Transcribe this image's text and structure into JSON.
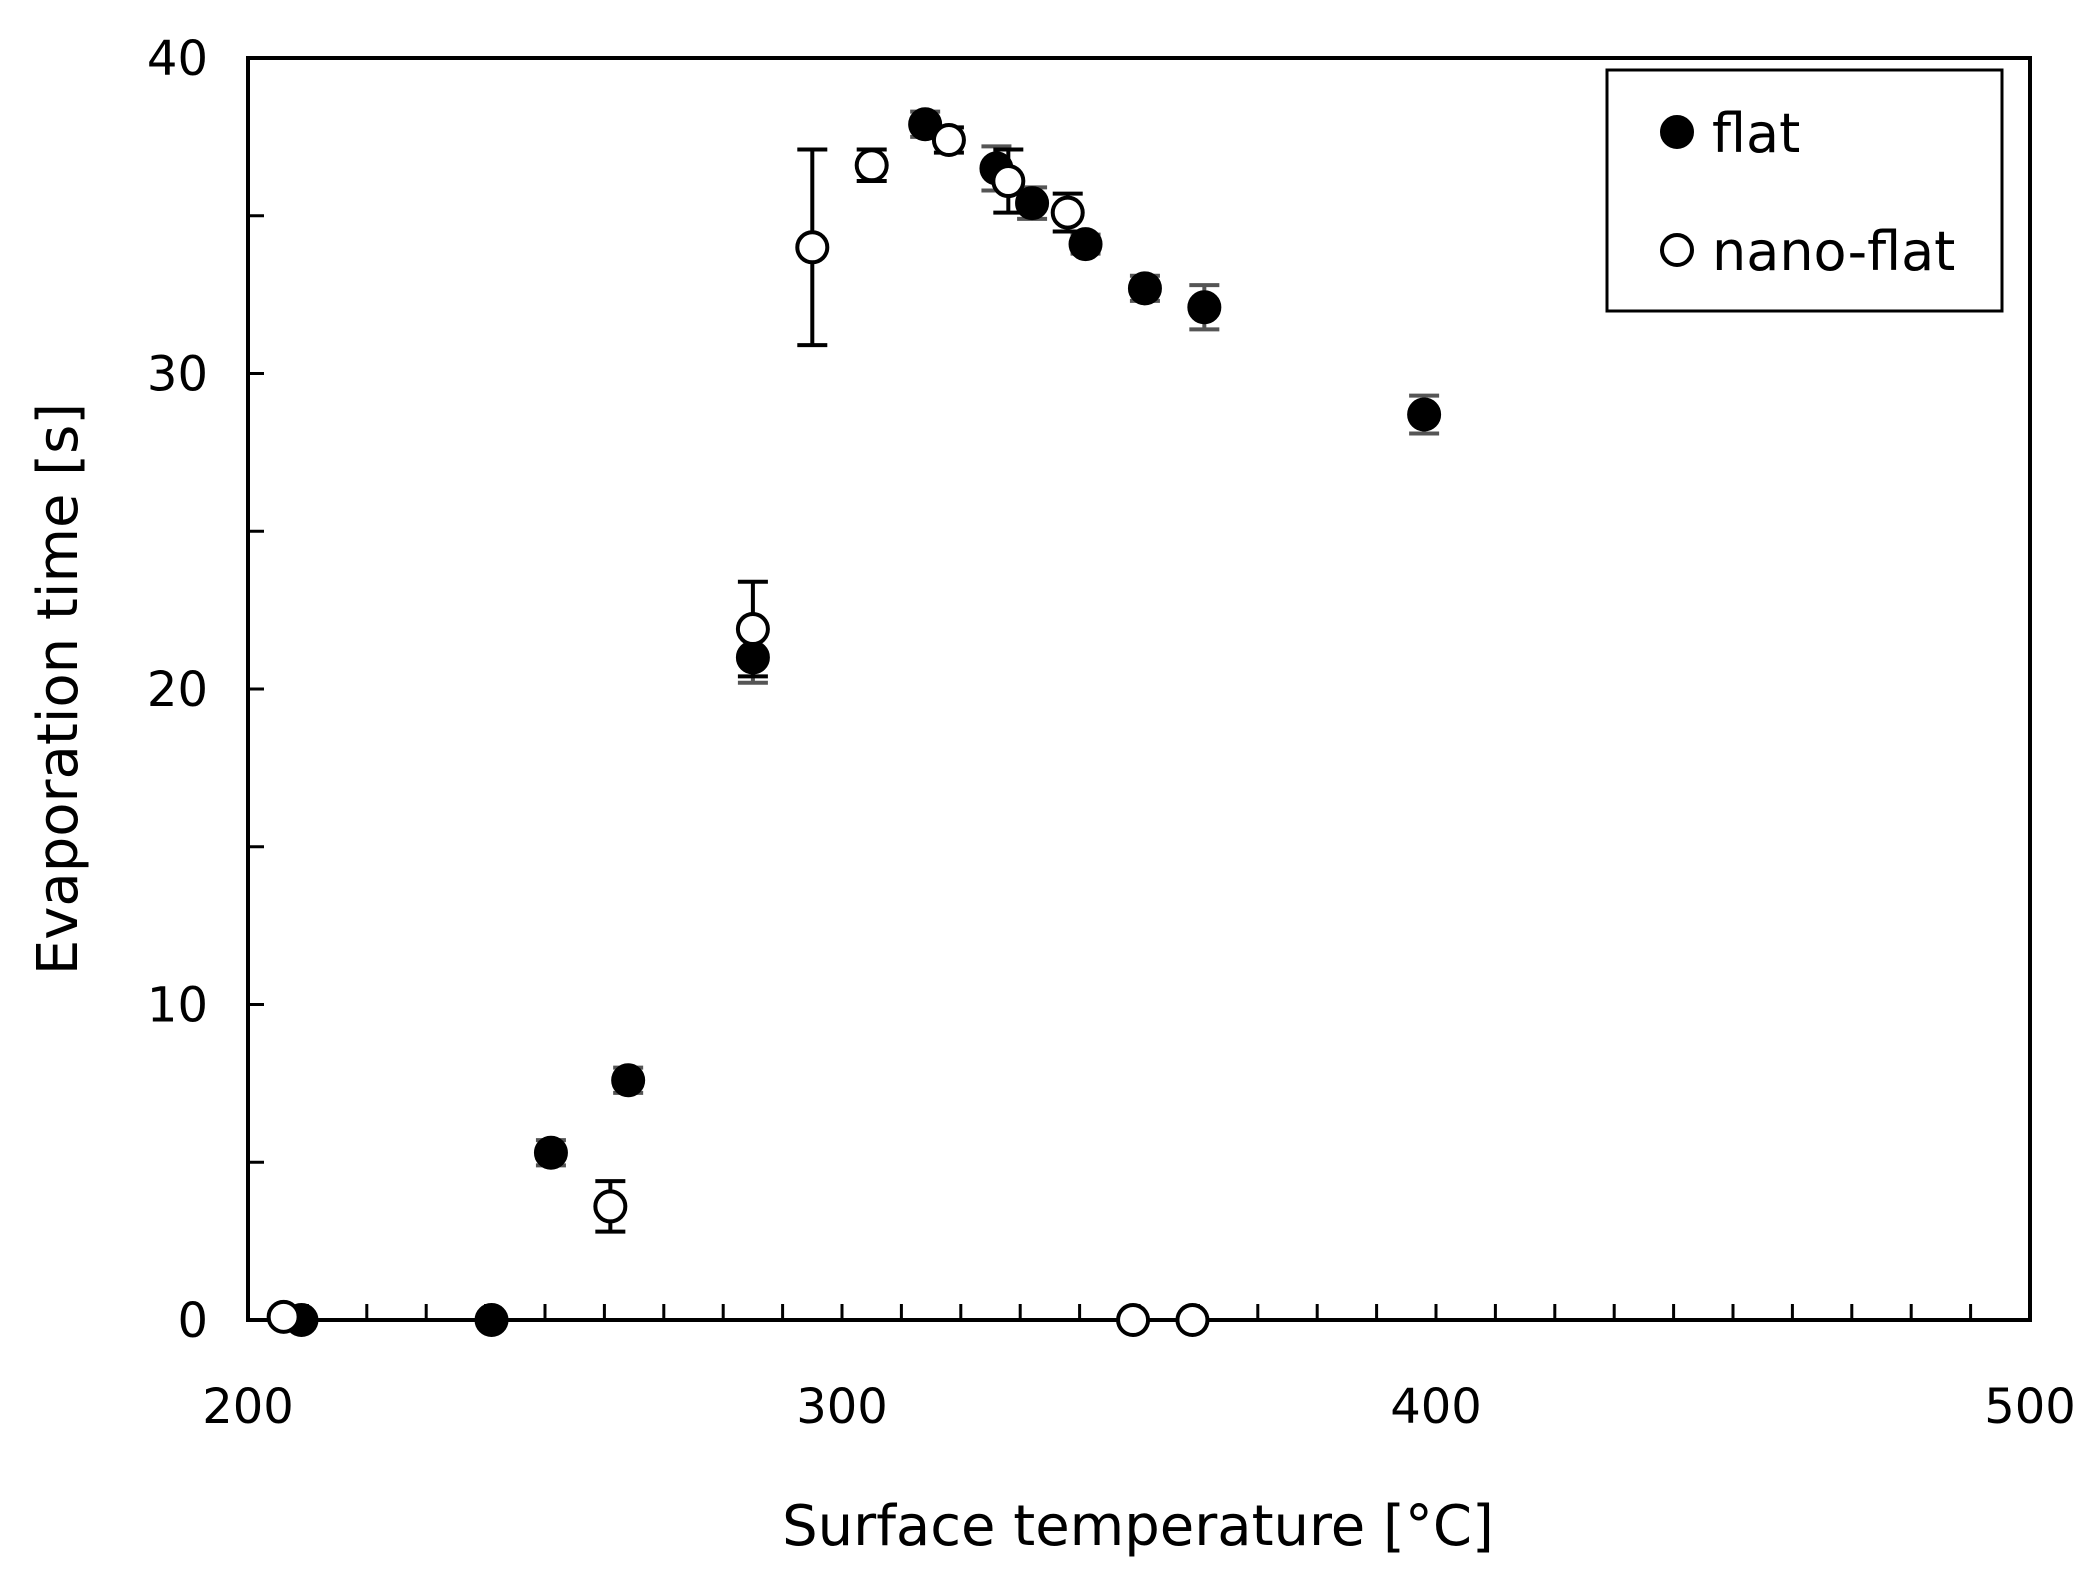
{
  "chart_data": {
    "type": "scatter",
    "title": "",
    "xlabel": "Surface temperature  [°C]",
    "ylabel": "Evaporation time  [s]",
    "xlim": [
      200,
      500
    ],
    "ylim": [
      0,
      40
    ],
    "x_ticks": [
      200,
      300,
      400,
      500
    ],
    "x_tick_labels": [
      "200",
      "300",
      "400",
      "500"
    ],
    "x_minor_step": 10,
    "y_ticks": [
      0,
      10,
      20,
      30,
      40
    ],
    "y_tick_labels": [
      "0",
      "10",
      "20",
      "30",
      "40"
    ],
    "y_minor_step": 5,
    "grid": false,
    "legend_position": "top-right",
    "series": [
      {
        "name": "flat",
        "marker": "filled-circle",
        "color": "#000000",
        "points": [
          {
            "x": 209,
            "y": 0,
            "err": 0
          },
          {
            "x": 241,
            "y": 0,
            "err": 0
          },
          {
            "x": 251,
            "y": 5.3,
            "err": 0.4
          },
          {
            "x": 264,
            "y": 7.6,
            "err": 0.4
          },
          {
            "x": 285,
            "y": 21.0,
            "err": 0.8
          },
          {
            "x": 314,
            "y": 37.9,
            "err": 0.4
          },
          {
            "x": 326,
            "y": 36.5,
            "err": 0.7
          },
          {
            "x": 332,
            "y": 35.4,
            "err": 0.5
          },
          {
            "x": 341,
            "y": 34.1,
            "err": 0.3
          },
          {
            "x": 351,
            "y": 32.7,
            "err": 0.4
          },
          {
            "x": 361,
            "y": 32.1,
            "err": 0.7
          },
          {
            "x": 398,
            "y": 28.7,
            "err": 0.6
          }
        ]
      },
      {
        "name": "nano-flat",
        "marker": "open-circle",
        "color": "#000000",
        "points": [
          {
            "x": 206,
            "y": 0.1,
            "err": 0
          },
          {
            "x": 261,
            "y": 3.6,
            "err": 0.8
          },
          {
            "x": 285,
            "y": 21.9,
            "err": 1.5
          },
          {
            "x": 295,
            "y": 34.0,
            "err": 3.1
          },
          {
            "x": 305,
            "y": 36.6,
            "err": 0.5
          },
          {
            "x": 318,
            "y": 37.4,
            "err": 0.4
          },
          {
            "x": 328,
            "y": 36.1,
            "err": 1.0
          },
          {
            "x": 338,
            "y": 35.1,
            "err": 0.6
          },
          {
            "x": 349,
            "y": 0,
            "err": 0
          },
          {
            "x": 359,
            "y": 0,
            "err": 0
          }
        ]
      }
    ]
  }
}
